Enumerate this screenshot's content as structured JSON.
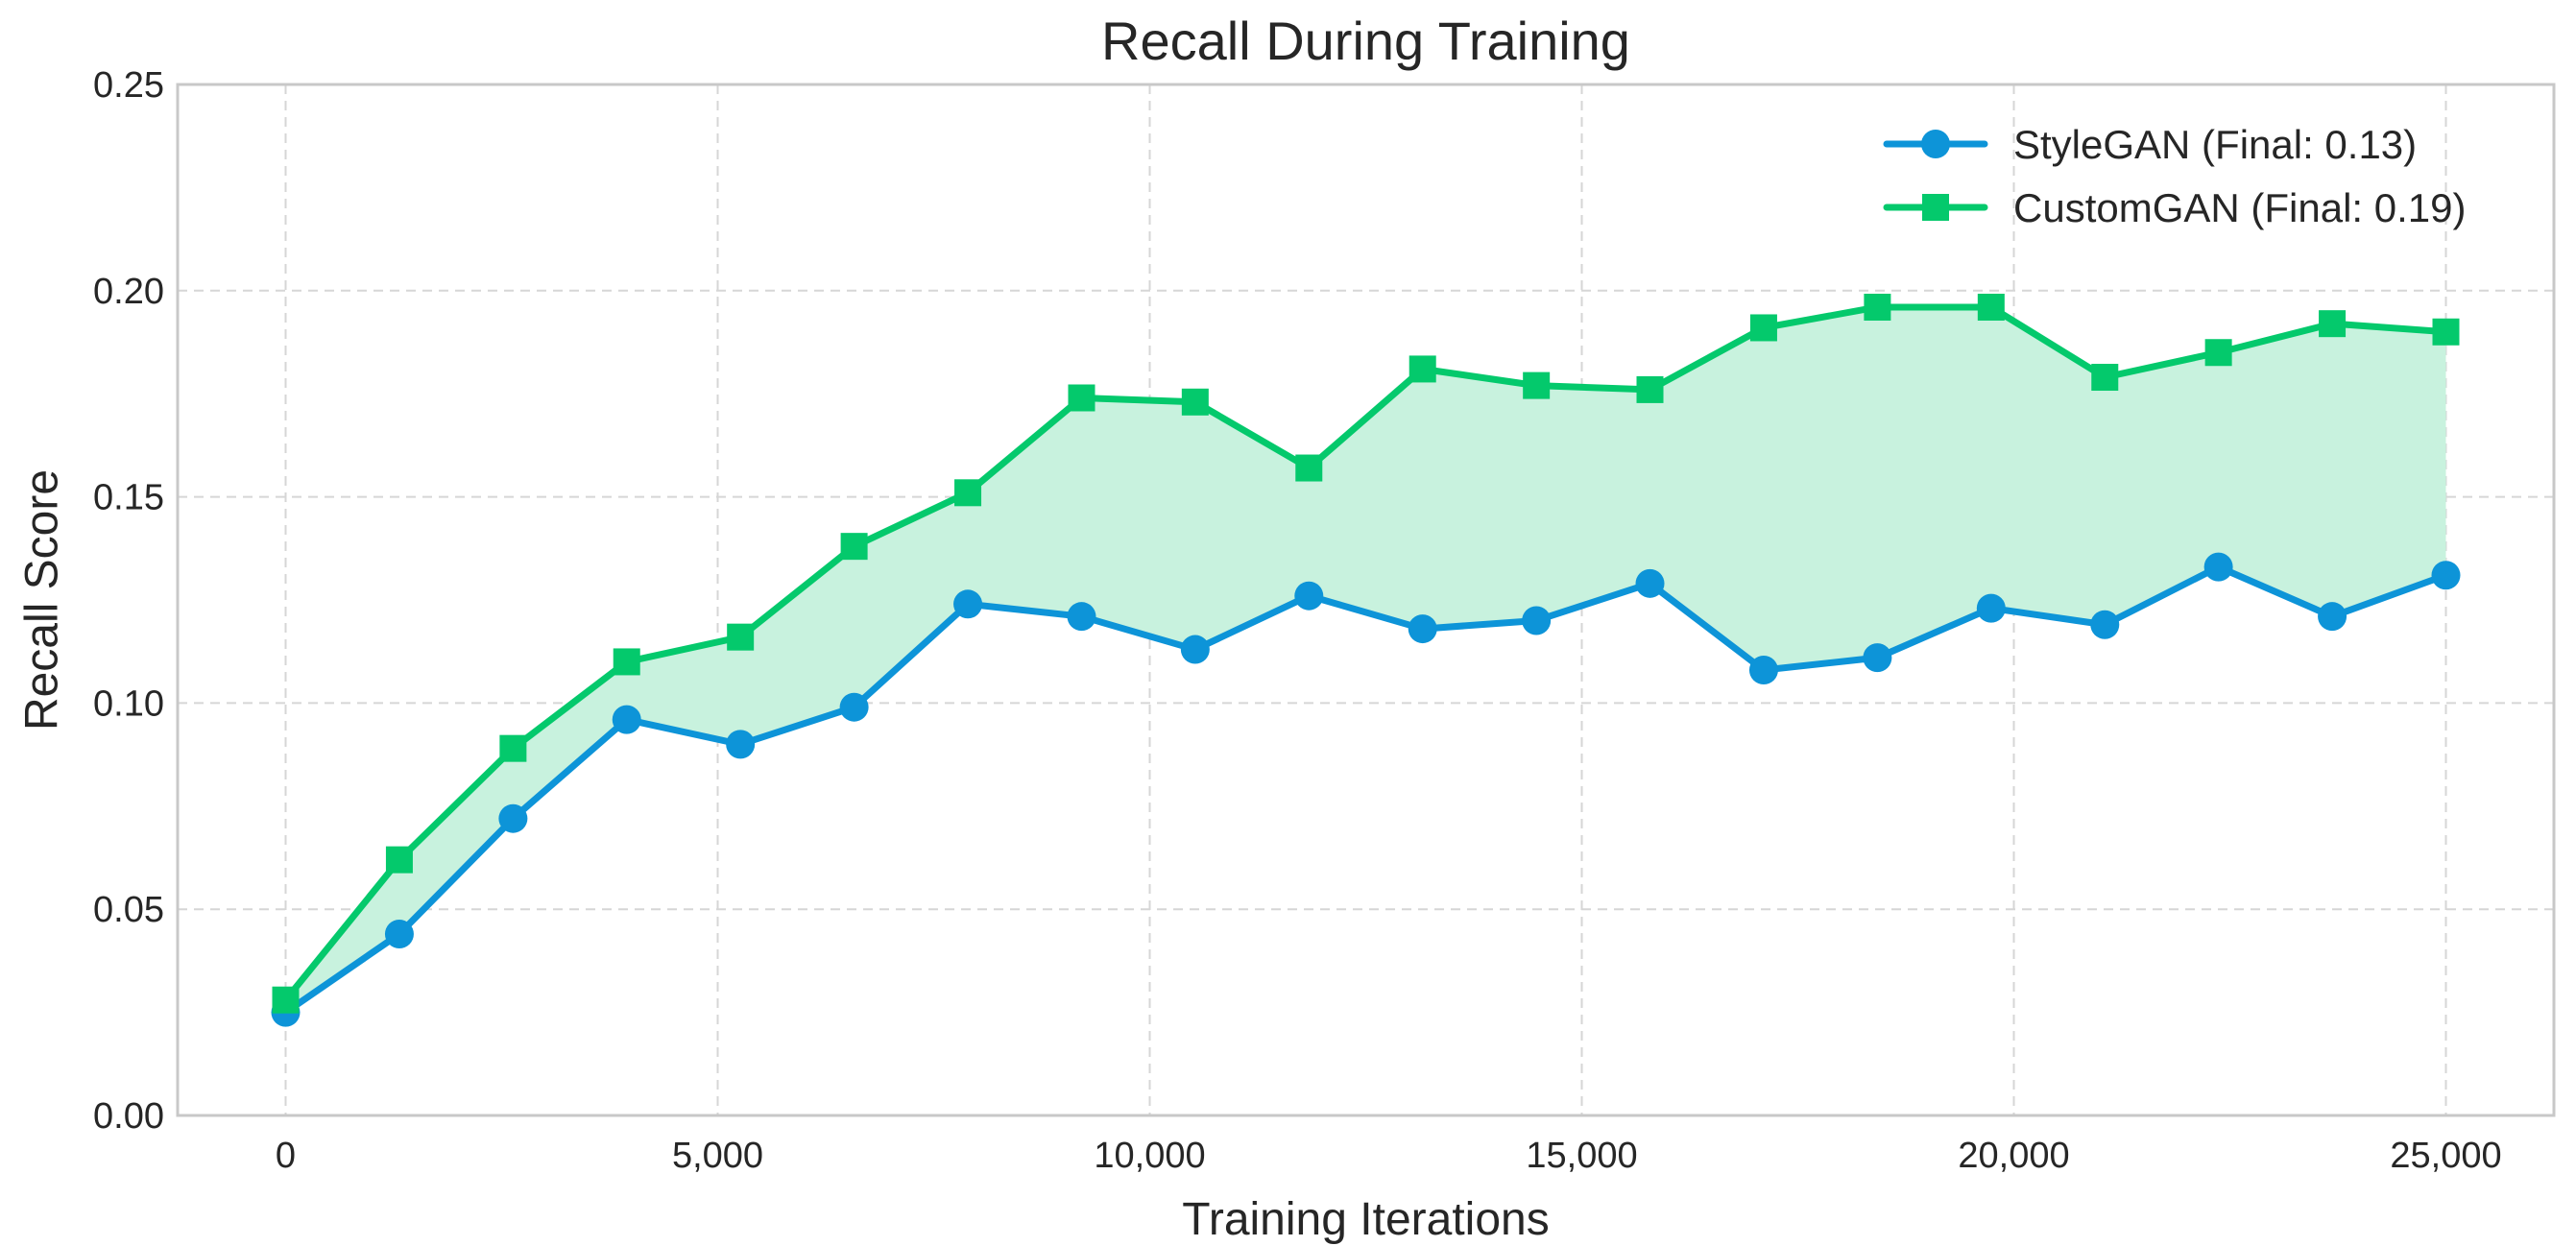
{
  "chart_data": {
    "type": "line",
    "title": "Recall During Training",
    "xlabel": "Training Iterations",
    "ylabel": "Recall Score",
    "xlim": [
      -1250,
      26250
    ],
    "ylim": [
      0,
      0.25
    ],
    "xticks": [
      0,
      5000,
      10000,
      15000,
      20000,
      25000
    ],
    "xtick_labels": [
      "0",
      "5,000",
      "10,000",
      "15,000",
      "20,000",
      "25,000"
    ],
    "yticks": [
      0,
      0.05,
      0.1,
      0.15,
      0.2,
      0.25
    ],
    "ytick_labels": [
      "0.00",
      "0.05",
      "0.10",
      "0.15",
      "0.20",
      "0.25"
    ],
    "grid": true,
    "legend_position": "top-right",
    "fill_between_series": true,
    "fill_color": "#c8f2de",
    "x": [
      0,
      1316,
      2632,
      3947,
      5263,
      6579,
      7895,
      9211,
      10526,
      11842,
      13158,
      14474,
      15789,
      17105,
      18421,
      19737,
      21053,
      22368,
      23684,
      25000
    ],
    "series": [
      {
        "name": "StyleGAN (Final: 0.13)",
        "color": "#0d94d8",
        "marker": "circle",
        "values": [
          0.025,
          0.044,
          0.072,
          0.096,
          0.09,
          0.099,
          0.124,
          0.121,
          0.113,
          0.126,
          0.118,
          0.12,
          0.129,
          0.108,
          0.111,
          0.123,
          0.119,
          0.133,
          0.121,
          0.131
        ]
      },
      {
        "name": "CustomGAN (Final: 0.19)",
        "color": "#04c96c",
        "marker": "square",
        "values": [
          0.028,
          0.062,
          0.089,
          0.11,
          0.116,
          0.138,
          0.151,
          0.174,
          0.173,
          0.157,
          0.181,
          0.177,
          0.176,
          0.191,
          0.196,
          0.196,
          0.179,
          0.185,
          0.192,
          0.19
        ]
      }
    ]
  }
}
